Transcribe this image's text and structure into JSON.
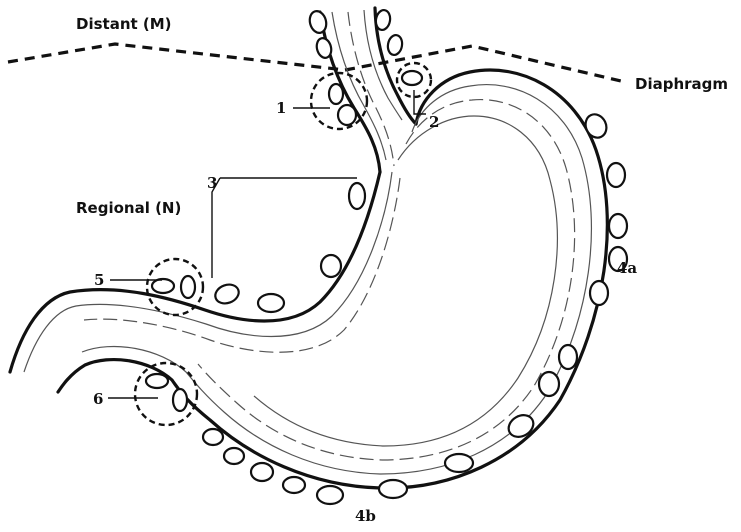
{
  "labels": {
    "distant": "Distant (M)",
    "regional": "Regional (N)",
    "diaphragm": "Diaphragm"
  },
  "stations": {
    "s1": "1",
    "s2": "2",
    "s3": "3",
    "s4a": "4a",
    "s4b": "4b",
    "s5": "5",
    "s6": "6"
  }
}
